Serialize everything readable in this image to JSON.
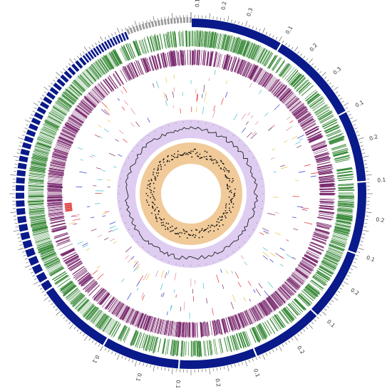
{
  "diagram": {
    "type": "circular-genome-map",
    "colors": {
      "background": "#ffffff",
      "outer_segments_large": "#0a1a8a",
      "outer_segments_small": "#9a9a9a",
      "forward_genes": "#3a8a3a",
      "reverse_genes": "#7a2a6e",
      "feature_red": "#e03030",
      "feature_blue": "#2a3ad0",
      "feature_pink": "#e08aa0",
      "feature_yellow": "#e6c040",
      "feature_cyan": "#40c0d0",
      "gc_track_bg": "#d8c4ee",
      "gc_line": "#222222",
      "skew_track_bg": "#eec48e",
      "skew_points": "#111111"
    },
    "track_order": [
      "ideogram-ticks",
      "contig-segments",
      "forward-strand-genes",
      "reverse-strand-genes",
      "feature-tracks",
      "gc-content",
      "gc-skew"
    ],
    "tick_labels": [
      {
        "label": "0.1",
        "angle": 2
      },
      {
        "label": "0.2",
        "angle": 10
      },
      {
        "label": "0.3",
        "angle": 18
      },
      {
        "label": "0.1",
        "angle": 31
      },
      {
        "label": "0.2",
        "angle": 40
      },
      {
        "label": "0.3",
        "angle": 50
      },
      {
        "label": "0.1",
        "angle": 62
      },
      {
        "label": "0.2",
        "angle": 73
      },
      {
        "label": "0.1",
        "angle": 86
      },
      {
        "label": "0.2",
        "angle": 98
      },
      {
        "label": "0.1",
        "angle": 110
      },
      {
        "label": "0.2",
        "angle": 121
      },
      {
        "label": "0.1",
        "angle": 133
      },
      {
        "label": "0.2",
        "angle": 145
      },
      {
        "label": "0.1",
        "angle": 160
      },
      {
        "label": "0.2",
        "angle": 172
      },
      {
        "label": "0.1",
        "angle": 184
      },
      {
        "label": "0.1",
        "angle": 196
      },
      {
        "label": "0.1",
        "angle": 210
      }
    ]
  }
}
